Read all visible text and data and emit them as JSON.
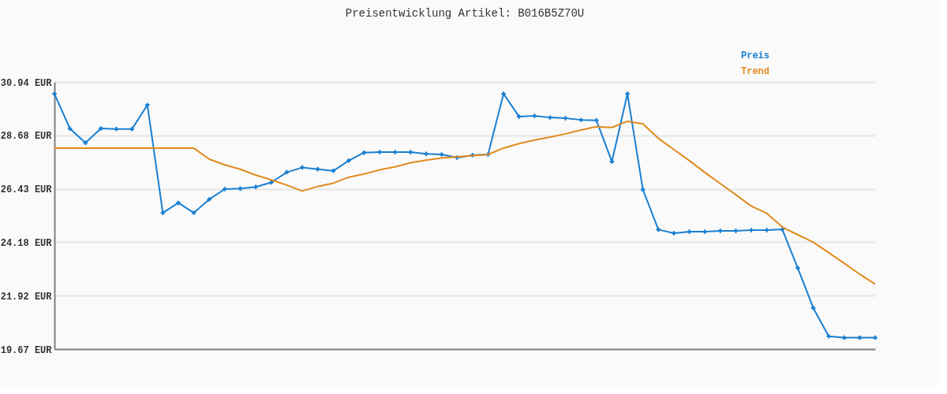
{
  "chart_data": {
    "type": "line",
    "title": "Preisentwicklung Artikel: B016B5Z70U",
    "categories": [
      null,
      null,
      null,
      null,
      null,
      null,
      null,
      null,
      null,
      null,
      null,
      null,
      null,
      null,
      null,
      null,
      null,
      null,
      null,
      null,
      null,
      null,
      null,
      null,
      null,
      null,
      null,
      null,
      null,
      null,
      null,
      null,
      null,
      null,
      null,
      null,
      null,
      null,
      null,
      null,
      null,
      null,
      null,
      null,
      null,
      null,
      null,
      null,
      null,
      null,
      null,
      null,
      null,
      null
    ],
    "series": [
      {
        "name": "Preis",
        "color": "#1a7fd0",
        "marker": "cross",
        "values": [
          30.44,
          28.97,
          28.37,
          28.98,
          28.95,
          28.95,
          29.97,
          25.42,
          25.84,
          25.42,
          25.99,
          26.42,
          26.44,
          26.51,
          26.7,
          27.13,
          27.33,
          27.26,
          27.19,
          27.62,
          27.96,
          27.98,
          27.98,
          27.98,
          27.91,
          27.88,
          27.75,
          27.85,
          27.88,
          30.44,
          29.48,
          29.51,
          29.44,
          29.41,
          29.34,
          29.32,
          27.58,
          30.44,
          26.4,
          24.71,
          24.56,
          24.62,
          24.62,
          24.66,
          24.66,
          24.69,
          24.69,
          24.72,
          23.09,
          21.41,
          20.21,
          20.15,
          20.15,
          20.15
        ]
      },
      {
        "name": "Trend",
        "color": "#e08a1e",
        "marker": "none",
        "values": [
          28.15,
          28.15,
          28.15,
          28.15,
          28.15,
          28.15,
          28.15,
          28.15,
          28.15,
          28.15,
          27.68,
          27.44,
          27.26,
          27.01,
          26.81,
          26.59,
          26.34,
          26.53,
          26.67,
          26.92,
          27.06,
          27.23,
          27.36,
          27.53,
          27.64,
          27.73,
          27.78,
          27.83,
          27.88,
          28.15,
          28.34,
          28.49,
          28.61,
          28.75,
          28.91,
          29.05,
          29.02,
          29.28,
          29.17,
          28.56,
          28.09,
          27.62,
          27.12,
          26.65,
          26.18,
          25.7,
          25.4,
          24.82,
          24.49,
          24.18,
          23.74,
          23.29,
          22.83,
          22.41
        ]
      }
    ],
    "ylim": [
      19.67,
      30.94
    ],
    "yticks": [
      {
        "value": 19.67,
        "label": "19.67 EUR"
      },
      {
        "value": 21.92,
        "label": "21.92 EUR"
      },
      {
        "value": 24.18,
        "label": "24.18 EUR"
      },
      {
        "value": 26.43,
        "label": "26.43 EUR"
      },
      {
        "value": 28.68,
        "label": "28.68 EUR"
      },
      {
        "value": 30.94,
        "label": "30.94 EUR"
      }
    ],
    "grid": "y",
    "legend": "top right",
    "tick_labels": "y"
  }
}
